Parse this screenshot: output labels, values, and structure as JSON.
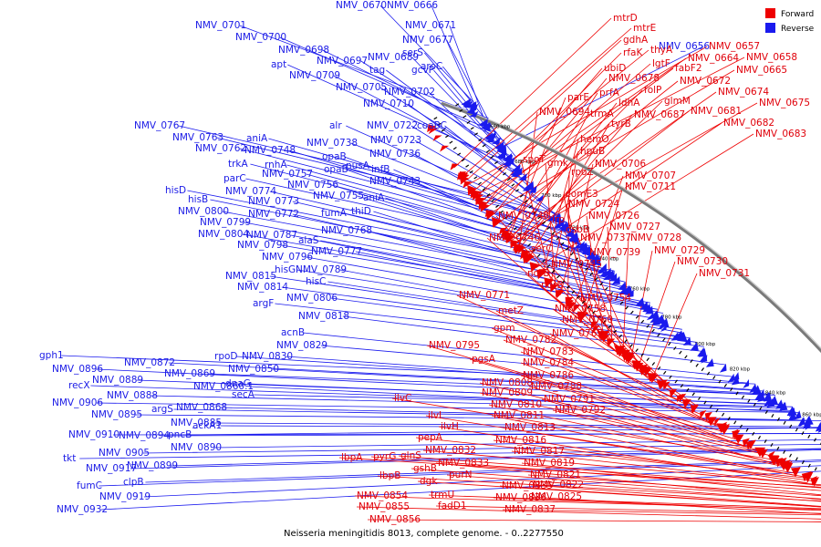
{
  "caption": "Neisseria meningitidis 8013, complete genome. - 0..2277550",
  "legend": [
    {
      "label": "Forward",
      "color": "#ee0000"
    },
    {
      "label": "Reverse",
      "color": "#1a1aee"
    }
  ],
  "colors": {
    "forward": "#ee0000",
    "reverse": "#1a1aee",
    "backbone": "#888888"
  },
  "ticks": [
    "660 kbp",
    "680 kbp",
    "700 kbp",
    "720 kbp",
    "740 kbp",
    "760 kbp",
    "780 kbp",
    "800 kbp",
    "820 kbp",
    "840 kbp",
    "860 kbp",
    "880 kbp",
    "900 kbp",
    "920 kbp"
  ],
  "forward_genes": [
    "mtrD",
    "mtrE",
    "gdhA",
    "thyA",
    "rfaK",
    "lgtF",
    "fabF2",
    "NMV_0664",
    "NMV_0665",
    "NMV_0658",
    "NMV_0657",
    "ubiD",
    "NMV_0672",
    "NMV_0678",
    "NMV_0674",
    "folP",
    "NMV_0675",
    "prfA",
    "glmM",
    "parE",
    "ldhA",
    "NMV_0681",
    "NMV_0694",
    "trmA",
    "NMV_0687",
    "NMV_0682",
    "NMV_0683",
    "tyrB",
    "hemO",
    "hpuB",
    "spoT",
    "gmk",
    "NMV_0706",
    "rpoZ",
    "NMV_0707",
    "NMV_0711",
    "comE3",
    "NMV_0724",
    "NMV_0740",
    "lrp",
    "NMV_0726",
    "dsbB",
    "NMV_0727",
    "NMV_0737",
    "NMV_0728",
    "NMV_0746",
    "NMV_0739",
    "NMV_0729",
    "serC",
    "NMV_0730",
    "NMV_0745",
    "NMV_0731",
    "norB",
    "norB",
    "NMV_0771",
    "NMV_0754",
    "NMV_0758",
    "metZ",
    "NMV_0760",
    "gpm",
    "NMV_0769",
    "NMV_0782",
    "NMV_0795",
    "NMV_0783",
    "pgsA",
    "NMV_0784",
    "NMV_0786",
    "NMV_0808",
    "NMV_0788",
    "NMV_0809",
    "NMV_0791",
    "ilvC",
    "NMV_0810",
    "NMV_0792",
    "NMV_0811",
    "ilvI",
    "ilvH",
    "NMV_0813",
    "NMV_0816",
    "pepA",
    "NMV_0817",
    "NMV_0832",
    "lbpA",
    "pyrG",
    "glnS",
    "NMV_0833",
    "NMV_0819",
    "gshB",
    "NMV_0821",
    "purN",
    "NMV_0822",
    "lbpB",
    "dgk",
    "NMV_0835",
    "NMV_0825",
    "trmU",
    "NMV_0836",
    "NMV_0854",
    "fadD1",
    "NMV_0837",
    "NMV_0855",
    "NMV_0856"
  ],
  "reverse_genes": [
    "NMV_0670",
    "NMV_0666",
    "NMV_0701",
    "NMV_0671",
    "NMV_0656",
    "NMV_0700",
    "NMV_0677",
    "NMV_0698",
    "serS",
    "NMV_0697",
    "NMV_0689",
    "apt",
    "tag",
    "gcvP",
    "aroC",
    "NMV_0709",
    "NMV_0705",
    "NMV_0702",
    "NMV_0710",
    "NMV_0767",
    "alr",
    "NMV_0722",
    "coaBC",
    "NMV_0763",
    "aniA",
    "NMV_0738",
    "NMV_0723",
    "NMV_0762",
    "NMV_0748",
    "opaB",
    "nusA",
    "trkA",
    "rnhA",
    "opaB",
    "infB",
    "parC",
    "NMV_0757",
    "NMV_0736",
    "NMV_0743",
    "NMV_0774",
    "NMV_0756",
    "hisD",
    "NMV_0755",
    "aniA",
    "hisB",
    "NMV_0773",
    "fumA",
    "thiD",
    "NMV_0800",
    "NMV_0772",
    "NMV_0799",
    "NMV_0768",
    "NMV_0804",
    "NMV_0787",
    "alaS",
    "NMV_0798",
    "NMV_0777",
    "NMV_0796",
    "hisG",
    "NMV_0789",
    "NMV_0815",
    "hisC",
    "NMV_0814",
    "NMV_0806",
    "argF",
    "NMV_0818",
    "acnB",
    "NMV_0829",
    "rpoD",
    "NMV_0830",
    "gph1",
    "NMV_0872",
    "NMV_0896",
    "NMV_0869",
    "dnaG",
    "NMV_0850",
    "recX",
    "NMV_0889",
    "NMV_0860.1",
    "NMV_0888",
    "secA",
    "NMV_0906",
    "argS",
    "NMV_0868",
    "NMV_0895",
    "NMV_0885",
    "ackA1",
    "NMV_0910",
    "NMV_0894",
    "pncB",
    "NMV_0890",
    "tkt",
    "NMV_0905",
    "NMV_0917",
    "NMV_0899",
    "fumC",
    "clpB",
    "NMV_0919",
    "NMV_0932"
  ]
}
